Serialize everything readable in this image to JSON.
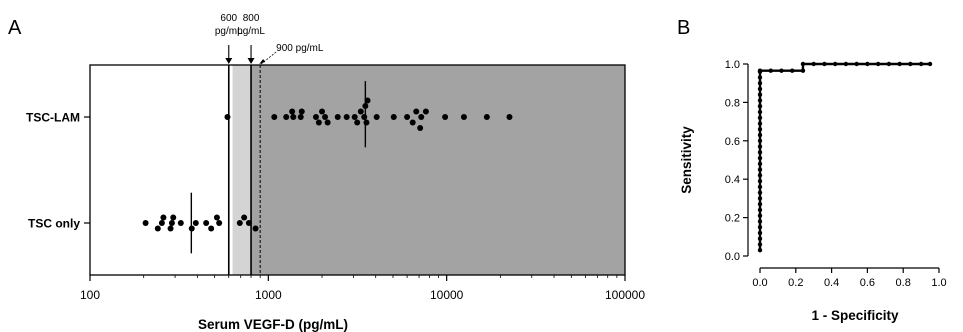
{
  "panels": {
    "a_letter": "A",
    "b_letter": "B"
  },
  "chart_data": [
    {
      "type": "scatter",
      "panel": "A",
      "xlabel": "Serum VEGF-D  (pg/mL)",
      "xscale": "log",
      "xlim": [
        100,
        100000
      ],
      "xticks": [
        {
          "value": 100,
          "label": "100"
        },
        {
          "value": 1000,
          "label": "1000"
        },
        {
          "value": 10000,
          "label": "10000"
        },
        {
          "value": 100000,
          "label": "100000"
        }
      ],
      "categories": [
        "TSC-LAM",
        "TSC only"
      ],
      "series": [
        {
          "category": "TSC-LAM",
          "points": [
            {
              "x": 590,
              "o": 0
            },
            {
              "x": 1080,
              "o": 0
            },
            {
              "x": 1260,
              "o": 0
            },
            {
              "x": 1360,
              "o": 1
            },
            {
              "x": 1380,
              "o": 0
            },
            {
              "x": 1520,
              "o": 0
            },
            {
              "x": 1540,
              "o": 1
            },
            {
              "x": 1850,
              "o": 0
            },
            {
              "x": 1920,
              "o": -1
            },
            {
              "x": 2000,
              "o": 1
            },
            {
              "x": 2080,
              "o": 0
            },
            {
              "x": 2150,
              "o": -1
            },
            {
              "x": 2450,
              "o": 0
            },
            {
              "x": 2750,
              "o": 0
            },
            {
              "x": 3050,
              "o": 0
            },
            {
              "x": 3150,
              "o": -1
            },
            {
              "x": 3300,
              "o": 1
            },
            {
              "x": 3450,
              "o": 0
            },
            {
              "x": 3500,
              "o": 2
            },
            {
              "x": 3550,
              "o": -1
            },
            {
              "x": 3600,
              "o": 3
            },
            {
              "x": 4050,
              "o": 0
            },
            {
              "x": 5050,
              "o": 0
            },
            {
              "x": 6000,
              "o": 0
            },
            {
              "x": 6450,
              "o": -1
            },
            {
              "x": 6750,
              "o": 1
            },
            {
              "x": 7100,
              "o": -2
            },
            {
              "x": 7200,
              "o": 0
            },
            {
              "x": 7650,
              "o": 1
            },
            {
              "x": 9800,
              "o": 0
            },
            {
              "x": 12500,
              "o": 0
            },
            {
              "x": 16800,
              "o": 0
            },
            {
              "x": 22500,
              "o": 0
            }
          ],
          "median": 3500,
          "range_top_offset": 4.5,
          "range_bottom_offset": -3.8
        },
        {
          "category": "TSC only",
          "points": [
            {
              "x": 205,
              "o": 0
            },
            {
              "x": 240,
              "o": -1
            },
            {
              "x": 253,
              "o": 0
            },
            {
              "x": 258,
              "o": 1
            },
            {
              "x": 283,
              "o": -1
            },
            {
              "x": 288,
              "o": 0
            },
            {
              "x": 293,
              "o": 1
            },
            {
              "x": 323,
              "o": 0
            },
            {
              "x": 372,
              "o": -1
            },
            {
              "x": 392,
              "o": 0
            },
            {
              "x": 448,
              "o": 0
            },
            {
              "x": 478,
              "o": -1
            },
            {
              "x": 515,
              "o": 1
            },
            {
              "x": 530,
              "o": 0
            },
            {
              "x": 692,
              "o": 0
            },
            {
              "x": 732,
              "o": 1
            },
            {
              "x": 778,
              "o": 0
            },
            {
              "x": 848,
              "o": -1
            }
          ],
          "median": 370,
          "range_top_offset": 3.8,
          "range_bottom_offset": -3.8
        }
      ],
      "thresholds": [
        {
          "value": 600,
          "label1": "600",
          "label2": "pg/mL",
          "style": "solid"
        },
        {
          "value": 800,
          "label1": "800",
          "label2": "pg/mL",
          "style": "solid"
        },
        {
          "value": 900,
          "label1": "900 pg/mL",
          "label2": "",
          "style": "dashed"
        }
      ],
      "shading": [
        {
          "from": 630,
          "to": 800,
          "color": "#d4d4d4"
        },
        {
          "from": 800,
          "to": 100000,
          "color": "#a3a3a3"
        }
      ]
    },
    {
      "type": "line",
      "panel": "B",
      "xlabel": "1 - Specificity",
      "ylabel": "Sensitivity",
      "xlim": [
        0,
        1
      ],
      "ylim": [
        0,
        1
      ],
      "xticks": [
        "0.0",
        "0.2",
        "0.4",
        "0.6",
        "0.8",
        "1.0"
      ],
      "yticks": [
        "0.0",
        "0.2",
        "0.4",
        "0.6",
        "0.8",
        "1.0"
      ],
      "x": [
        0.0,
        0.0,
        0.0,
        0.0,
        0.0,
        0.0,
        0.0,
        0.0,
        0.0,
        0.0,
        0.0,
        0.0,
        0.0,
        0.0,
        0.0,
        0.0,
        0.0,
        0.0,
        0.0,
        0.0,
        0.0,
        0.0,
        0.0,
        0.0,
        0.0,
        0.0,
        0.0,
        0.0,
        0.0,
        0.0,
        0.0,
        0.0,
        0.0,
        0.06,
        0.12,
        0.18,
        0.24,
        0.24,
        0.3,
        0.36,
        0.42,
        0.48,
        0.54,
        0.6,
        0.66,
        0.72,
        0.78,
        0.84,
        0.9,
        0.95
      ],
      "y": [
        0.03,
        0.06,
        0.09,
        0.12,
        0.15,
        0.18,
        0.21,
        0.24,
        0.27,
        0.3,
        0.33,
        0.36,
        0.39,
        0.42,
        0.45,
        0.48,
        0.51,
        0.54,
        0.57,
        0.6,
        0.63,
        0.66,
        0.69,
        0.72,
        0.75,
        0.78,
        0.81,
        0.84,
        0.87,
        0.9,
        0.93,
        0.96,
        0.965,
        0.965,
        0.965,
        0.965,
        0.965,
        1.0,
        1.0,
        1.0,
        1.0,
        1.0,
        1.0,
        1.0,
        1.0,
        1.0,
        1.0,
        1.0,
        1.0,
        1.0
      ]
    }
  ]
}
